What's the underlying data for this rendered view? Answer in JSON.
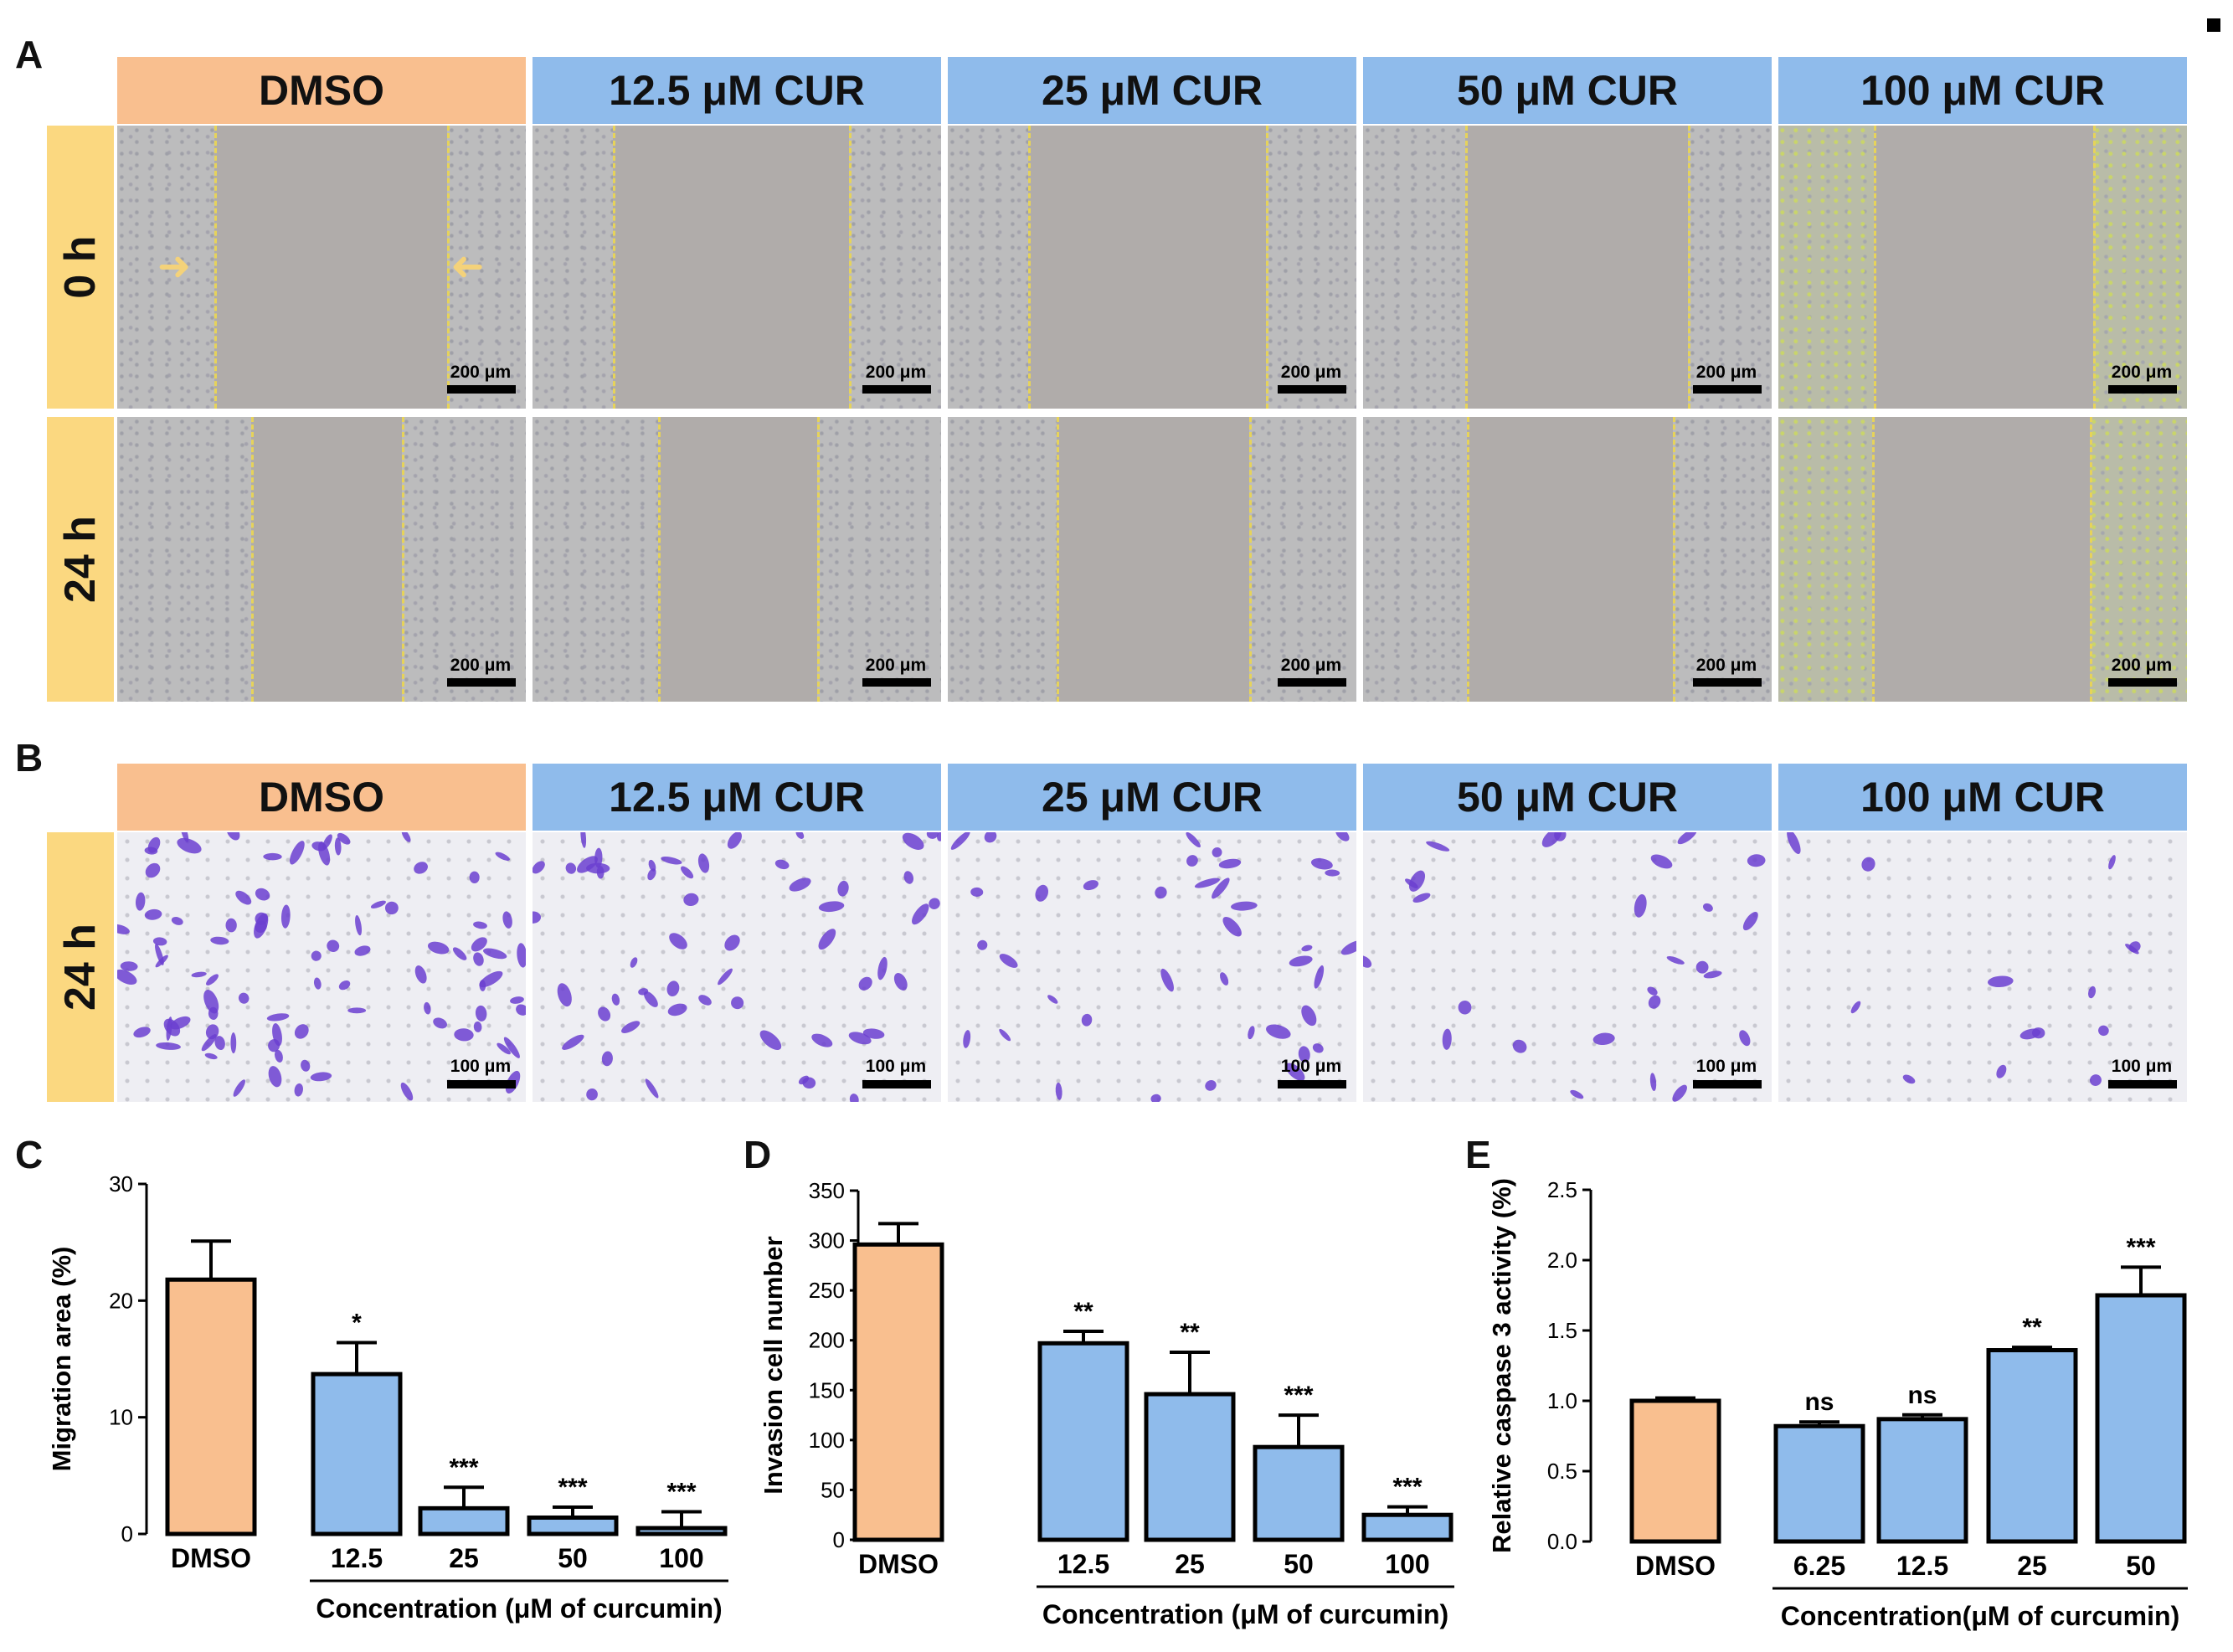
{
  "panel_letters": {
    "a": "A",
    "b": "B",
    "c": "C",
    "d": "D",
    "e": "E"
  },
  "headers": [
    "DMSO",
    "12.5 μM CUR",
    "25 μM CUR",
    "50 μM CUR",
    "100 μM CUR"
  ],
  "row_labels": {
    "a_row1": "0 h",
    "a_row2": "24 h",
    "b_row1": "24 h"
  },
  "scale_bars": {
    "a": "200 μm",
    "b": "100 μm"
  },
  "colors": {
    "dmso": "#f9bf8f",
    "curcumin": "#8fbbeb",
    "row_label": "#fbd880",
    "crystal_violet": "#6b3fd0"
  },
  "chart_data": [
    {
      "type": "bar",
      "panel": "C",
      "categories": [
        "DMSO",
        "12.5",
        "25",
        "50",
        "100"
      ],
      "values": [
        21.8,
        13.7,
        2.2,
        1.4,
        0.5
      ],
      "errors": [
        3.3,
        2.7,
        1.8,
        0.9,
        1.4
      ],
      "significance": [
        "",
        "*",
        "***",
        "***",
        "***"
      ],
      "xlabel": "Concentration (μM of curcumin)",
      "ylabel": "Migration area (%)",
      "ylim": [
        0,
        30
      ],
      "yticks": [
        "0",
        "10",
        "20",
        "30"
      ]
    },
    {
      "type": "bar",
      "panel": "D",
      "categories": [
        "DMSO",
        "12.5",
        "25",
        "50",
        "100"
      ],
      "values": [
        296,
        197,
        146,
        93,
        25
      ],
      "errors": [
        21,
        12,
        42,
        32,
        8
      ],
      "significance": [
        "",
        "**",
        "**",
        "***",
        "***"
      ],
      "xlabel": "Concentration (μM of curcumin)",
      "ylabel": "Invasion cell number",
      "ylim": [
        0,
        350
      ],
      "yticks": [
        "0",
        "50",
        "100",
        "150",
        "200",
        "250",
        "300",
        "350"
      ]
    },
    {
      "type": "bar",
      "panel": "E",
      "categories": [
        "DMSO",
        "6.25",
        "12.5",
        "25",
        "50"
      ],
      "values": [
        1.0,
        0.82,
        0.87,
        1.36,
        1.75
      ],
      "errors": [
        0.02,
        0.03,
        0.03,
        0.02,
        0.2
      ],
      "significance": [
        "",
        "ns",
        "ns",
        "**",
        "***"
      ],
      "xlabel": "Concentration(μM of curcumin)",
      "ylabel": "Relative caspase 3 activity (%)",
      "ylim": [
        0,
        2.5
      ],
      "yticks": [
        "0.0",
        "0.5",
        "1.0",
        "1.5",
        "2.0",
        "2.5"
      ]
    }
  ]
}
